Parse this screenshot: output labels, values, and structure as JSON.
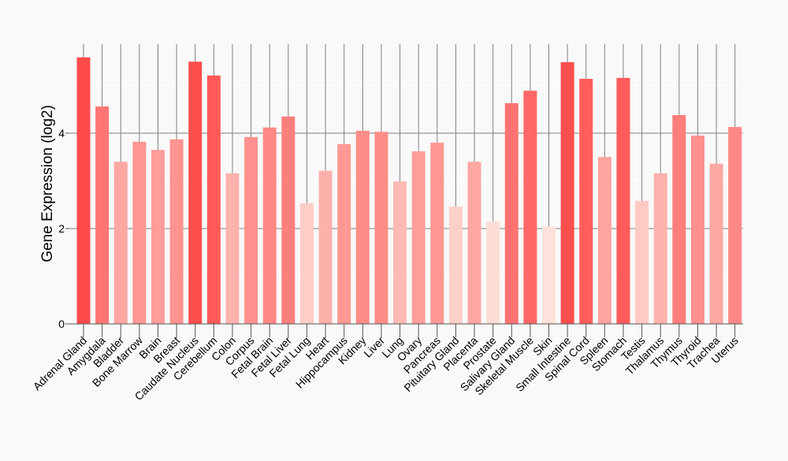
{
  "chart_data": {
    "type": "bar",
    "title": "",
    "xlabel": "",
    "ylabel": "Gene Expression (log2)",
    "ylim": [
      0,
      5.9
    ],
    "yticks": [
      0,
      2,
      4
    ],
    "grid": true,
    "categories": [
      "Adrenal Gland",
      "Amygdala",
      "Bladder",
      "Bone Marrow",
      "Brain",
      "Breast",
      "Caudate Nucleus",
      "Cerebellum",
      "Colon",
      "Corpus",
      "Fetal Brain",
      "Fetal Liver",
      "Fetal Lung",
      "Heart",
      "Hippocampus",
      "Kidney",
      "Liver",
      "Lung",
      "Ovary",
      "Pancreas",
      "Pituitary Gland",
      "Placenta",
      "Prostate",
      "Salivary Gland",
      "Skeletal Muscle",
      "Skin",
      "Small Intestine",
      "Spinal Cord",
      "Spleen",
      "Stomach",
      "Testis",
      "Thalamus",
      "Thymus",
      "Thyroid",
      "Trachea",
      "Uterus"
    ],
    "values": [
      5.59,
      4.56,
      3.4,
      3.82,
      3.65,
      3.87,
      5.5,
      5.21,
      3.16,
      3.92,
      4.12,
      4.35,
      2.53,
      3.21,
      3.77,
      4.05,
      4.03,
      2.99,
      3.62,
      3.8,
      2.46,
      3.4,
      2.15,
      4.63,
      4.89,
      2.05,
      5.49,
      5.14,
      3.5,
      5.16,
      2.58,
      3.16,
      4.38,
      3.95,
      3.36,
      4.13
    ],
    "colors": {
      "low": "#fde1da",
      "high": "#ff4a4a",
      "axis": "#555555",
      "grid": "#808080"
    }
  }
}
